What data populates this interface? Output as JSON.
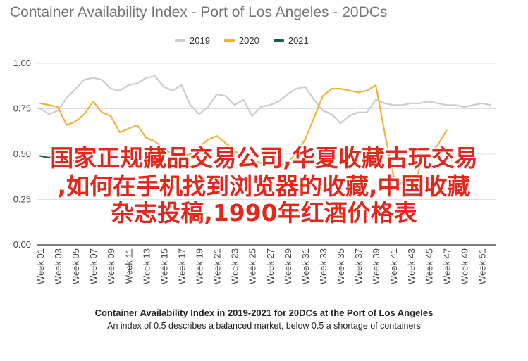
{
  "chart_data": {
    "type": "line",
    "title": "Container Availability Index - Port of Los Angeles - 20DCs",
    "xlabel": "",
    "ylabel": "",
    "ylim": [
      0,
      1.0
    ],
    "yticks": [
      "0.00",
      "0.25",
      "0.50",
      "0.75",
      "1.00"
    ],
    "ytick_values": [
      0,
      0.25,
      0.5,
      0.75,
      1.0
    ],
    "grid": true,
    "legend_position": "top",
    "categories": [
      "Week 01",
      "Week 02",
      "Week 03",
      "Week 04",
      "Week 05",
      "Week 06",
      "Week 07",
      "Week 08",
      "Week 09",
      "Week 10",
      "Week 11",
      "Week 12",
      "Week 13",
      "Week 14",
      "Week 15",
      "Week 16",
      "Week 17",
      "Week 18",
      "Week 19",
      "Week 20",
      "Week 21",
      "Week 22",
      "Week 23",
      "Week 24",
      "Week 25",
      "Week 26",
      "Week 27",
      "Week 28",
      "Week 29",
      "Week 30",
      "Week 31",
      "Week 32",
      "Week 33",
      "Week 34",
      "Week 35",
      "Week 36",
      "Week 37",
      "Week 38",
      "Week 39",
      "Week 40",
      "Week 41",
      "Week 42",
      "Week 43",
      "Week 44",
      "Week 45",
      "Week 46",
      "Week 47",
      "Week 48",
      "Week 49",
      "Week 50",
      "Week 51",
      "Week 52"
    ],
    "xtick_labels": [
      "Week 01",
      "Week 03",
      "Week 05",
      "Week 07",
      "Week 09",
      "Week 11",
      "Week 13",
      "Week 15",
      "Week 17",
      "Week 19",
      "Week 21",
      "Week 23",
      "Week 25",
      "Week 27",
      "Week 29",
      "Week 31",
      "Week 33",
      "Week 35",
      "Week 37",
      "Week 39",
      "Week 41",
      "Week 43",
      "Week 45",
      "Week 47",
      "Week 49",
      "Week 51"
    ],
    "series": [
      {
        "name": "2019",
        "color": "#cccccc",
        "values": [
          0.75,
          0.72,
          0.74,
          0.81,
          0.86,
          0.91,
          0.92,
          0.91,
          0.86,
          0.85,
          0.88,
          0.89,
          0.92,
          0.93,
          0.87,
          0.85,
          0.88,
          0.77,
          0.72,
          0.76,
          0.83,
          0.82,
          0.77,
          0.8,
          0.71,
          0.76,
          0.77,
          0.79,
          0.83,
          0.86,
          0.87,
          0.8,
          0.74,
          0.72,
          0.67,
          0.71,
          0.73,
          0.73,
          0.8,
          0.78,
          0.77,
          0.77,
          0.78,
          0.78,
          0.79,
          0.78,
          0.77,
          0.77,
          0.76,
          0.77,
          0.78,
          0.77
        ]
      },
      {
        "name": "2020",
        "color": "#f4b13a",
        "values": [
          0.78,
          0.77,
          0.76,
          0.66,
          0.68,
          0.72,
          0.79,
          0.73,
          0.71,
          0.62,
          0.64,
          0.66,
          0.59,
          0.57,
          0.53,
          0.5,
          0.49,
          0.5,
          0.54,
          0.58,
          0.6,
          0.56,
          0.52,
          0.48,
          0.47,
          0.45,
          0.45,
          0.44,
          0.45,
          0.51,
          0.58,
          0.7,
          0.82,
          0.86,
          0.86,
          0.85,
          0.84,
          0.85,
          0.88,
          0.62,
          0.38,
          0.33,
          0.27,
          0.43,
          0.49,
          0.55,
          0.63,
          null,
          null,
          null,
          null,
          null
        ]
      },
      {
        "name": "2021",
        "color": "#1b5e3f",
        "values": [
          0.49,
          0.48,
          0.5,
          0.47,
          0.46,
          0.46,
          null,
          null,
          null,
          null,
          null,
          null,
          null,
          null,
          null,
          null,
          null,
          null,
          null,
          null,
          null,
          null,
          null,
          null,
          null,
          null,
          null,
          null,
          null,
          null,
          null,
          null,
          null,
          null,
          null,
          null,
          null,
          null,
          null,
          null,
          null,
          null,
          null,
          null,
          null,
          null,
          null,
          null,
          null,
          null,
          null,
          null
        ]
      }
    ]
  },
  "overlay": {
    "line1": "国家正规藏品交易公司,华夏收藏古玩交易",
    "line2": ",如何在手机找到浏览器的收藏,中国收藏",
    "line3": "杂志投稿,1990年红酒价格表"
  },
  "caption": {
    "line1": "Container Availability Index in 2019-2021 for 20DCs at the Port of Los Angeles",
    "line2": "An index of 0.5 describes a balanced market, below 0.5 a shortage of containers"
  }
}
